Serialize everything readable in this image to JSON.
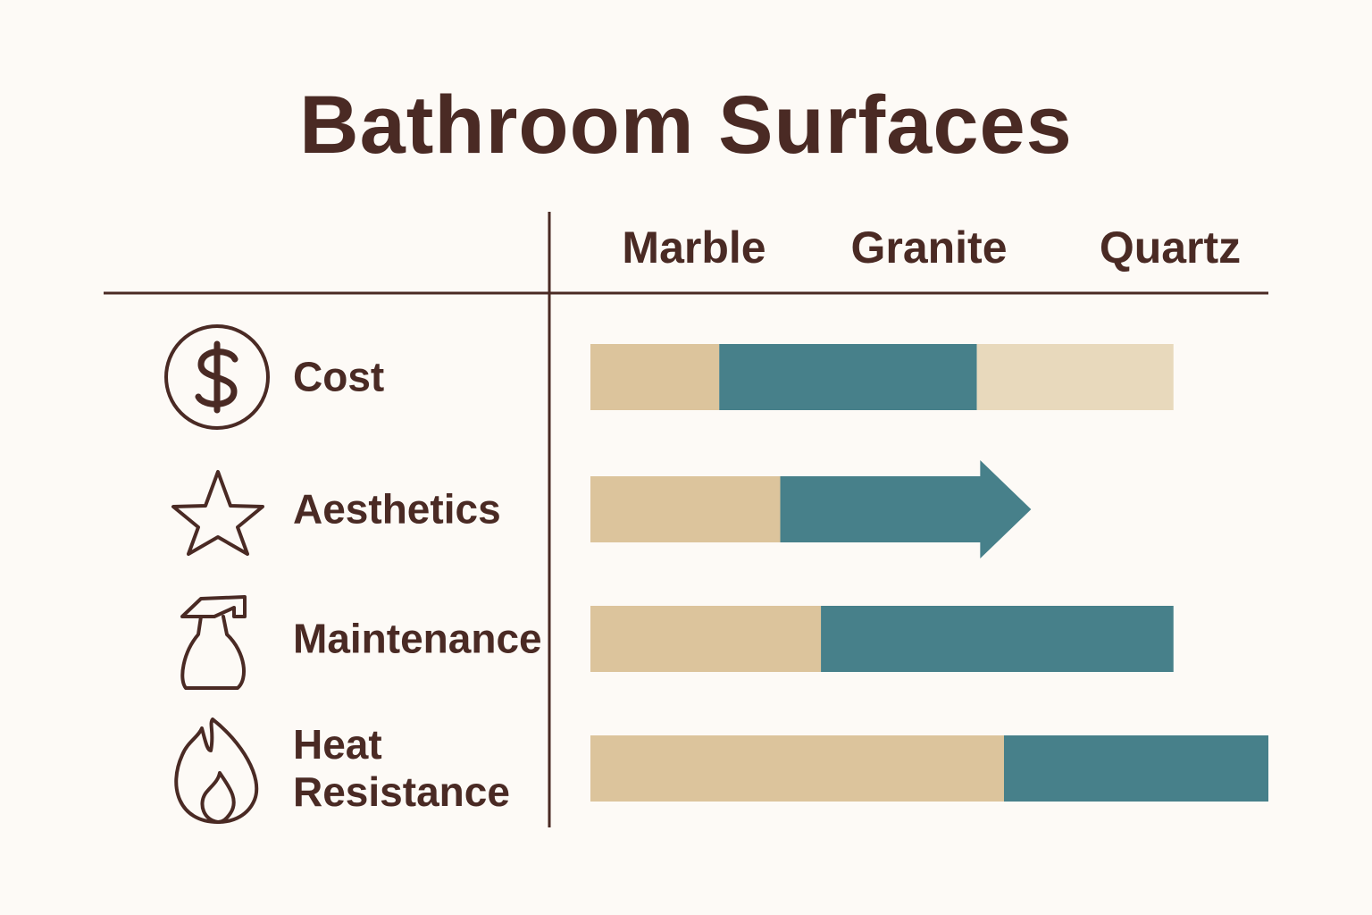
{
  "chart_data": {
    "type": "bar",
    "title": "Bathroom Surfaces",
    "columns": [
      "Marble",
      "Granite",
      "Quartz"
    ],
    "categories": [
      "Cost",
      "Aesthetics",
      "Maintenance",
      "Heat Resistance"
    ],
    "orientation": "horizontal",
    "stacked": true,
    "xlim": [
      0,
      100
    ],
    "series": [
      {
        "color": "#dcc49c",
        "values": [
          19,
          28,
          34,
          61
        ]
      },
      {
        "color": "#47808a",
        "values": [
          38,
          37,
          52,
          39
        ],
        "end_shape": [
          "flat",
          "arrow",
          "flat",
          "flat"
        ]
      },
      {
        "color": "#e8d9bc",
        "values": [
          29,
          null,
          null,
          null
        ]
      }
    ]
  }
}
